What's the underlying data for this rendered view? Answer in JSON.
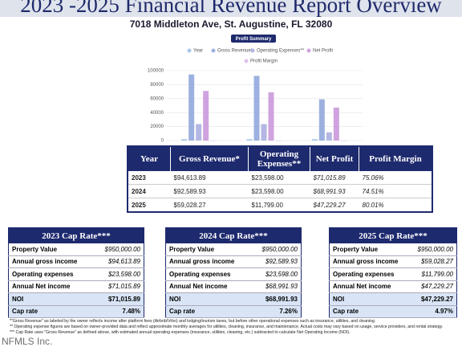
{
  "header": {
    "title": "2023 -2025 Financial Revenue Report Overview",
    "address": "7018 Middleton Ave, St. Augustine, FL 32080"
  },
  "chart_data": {
    "type": "bar",
    "title": "Profit Summary",
    "categories": [
      null,
      null,
      null
    ],
    "series": [
      {
        "name": "Year",
        "color": "#a9c6e8",
        "values": [
          2023,
          2024,
          2025
        ]
      },
      {
        "name": "Gross Revenue*",
        "color": "#9cb1e0",
        "values": [
          94613.89,
          92589.93,
          59028.27
        ]
      },
      {
        "name": "Operating Expenses**",
        "color": "#b4b7e4",
        "values": [
          23598,
          23598,
          11799
        ]
      },
      {
        "name": "Net Profit",
        "color": "#cfa3df",
        "values": [
          71015.89,
          68991.93,
          47229.27
        ]
      },
      {
        "name": "Profit Margin",
        "color": "#e0c3ec",
        "values": [
          75.06,
          74.51,
          80.01
        ]
      }
    ],
    "ylim": [
      0,
      100000
    ],
    "yticks": [
      0,
      20000,
      40000,
      60000,
      80000,
      100000
    ],
    "grid": true
  },
  "table": {
    "columns": [
      "Year",
      "Gross Revenue*",
      "Operating Expenses**",
      "Net Profit",
      "Profit Margin"
    ],
    "rows": [
      [
        "2023",
        "$94,613.89",
        "$23,598.00",
        "$71,015.89",
        "75.06%"
      ],
      [
        "2024",
        "$92,589.93",
        "$23,598.00",
        "$68,991.93",
        "74.51%"
      ],
      [
        "2025",
        "$59,028.27",
        "$11,799.00",
        "$47,229.27",
        "80.01%"
      ]
    ]
  },
  "cap_rates": [
    {
      "title": "2023 Cap Rate***",
      "rows": [
        [
          "Property Value",
          "$950,000.00"
        ],
        [
          "Annual gross income",
          "$94,613.89"
        ],
        [
          "Operating expenses",
          "$23,598.00"
        ],
        [
          "Annual Net income",
          "$71,015.89"
        ],
        [
          "NOI",
          "$71,015.89"
        ],
        [
          "Cap rate",
          "7.48%"
        ]
      ]
    },
    {
      "title": "2024 Cap Rate***",
      "rows": [
        [
          "Property Value",
          "$950,000.00"
        ],
        [
          "Annual gross income",
          "$92,589.93"
        ],
        [
          "Operating expenses",
          "$23,598.00"
        ],
        [
          "Annual Net income",
          "$68,991.93"
        ],
        [
          "NOI",
          "$68,991.93"
        ],
        [
          "Cap rate",
          "7.26%"
        ]
      ]
    },
    {
      "title": "2025 Cap Rate***",
      "rows": [
        [
          "Property Value",
          "$950,000.00"
        ],
        [
          "Annual gross income",
          "$59,028.27"
        ],
        [
          "Operating expenses",
          "$11,799.00"
        ],
        [
          "Annual Net income",
          "$47,229.27"
        ],
        [
          "NOI",
          "$47,229.27"
        ],
        [
          "Cap rate",
          "4.97%"
        ]
      ]
    }
  ],
  "footnotes": [
    "*\"Gross Revenue\" as labeled by the owner reflects income after platform fees (Airbnb/Vrbo) and lodging/tourism taxes, but before other operational expenses such as insurance, utilities, and cleaning.",
    "** Operating expense figures are based on owner-provided data and reflect approximate monthly averages for utilities, cleaning, insurance, and maintenance. Actual costs may vary based on usage, service providers, and rental strategy.",
    "*** Cap Rate uses \"Gross Revenue\" as defined above, with estimated annual operating expenses (insurance, utilities, cleaning, etc.) subtracted to calculate Net Operating Income (NOI)."
  ],
  "watermark": "NFMLS Inc."
}
